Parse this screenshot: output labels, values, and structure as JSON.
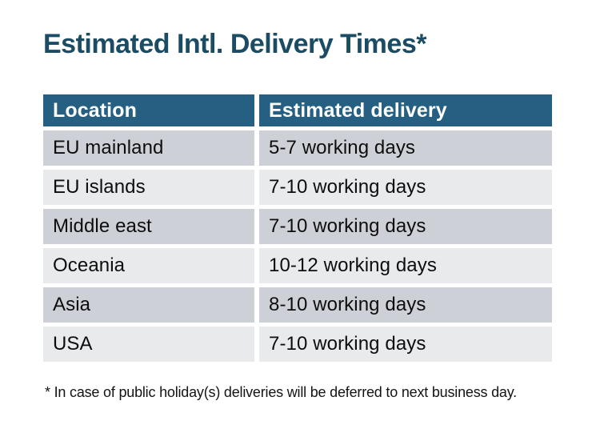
{
  "title": "Estimated Intl. Delivery Times*",
  "colors": {
    "title_text": "#1B4C63",
    "header_bg": "#255F82",
    "header_text": "#FFFFFF",
    "row_dark_bg": "#CDD1D7",
    "row_light_bg": "#E8EAEC",
    "body_text": "#0D0D0D",
    "background": "#FFFFFF"
  },
  "table": {
    "columns": [
      "Location",
      "Estimated delivery"
    ],
    "rows": [
      {
        "location": "EU mainland",
        "delivery": "5-7 working days"
      },
      {
        "location": "EU islands",
        "delivery": "7-10 working days"
      },
      {
        "location": "Middle east",
        "delivery": "7-10 working days"
      },
      {
        "location": "Oceania",
        "delivery": "10-12 working days"
      },
      {
        "location": "Asia",
        "delivery": "8-10 working days"
      },
      {
        "location": "USA",
        "delivery": "7-10 working days"
      }
    ]
  },
  "footnote": "* In case of public holiday(s) deliveries will be deferred to next business day."
}
